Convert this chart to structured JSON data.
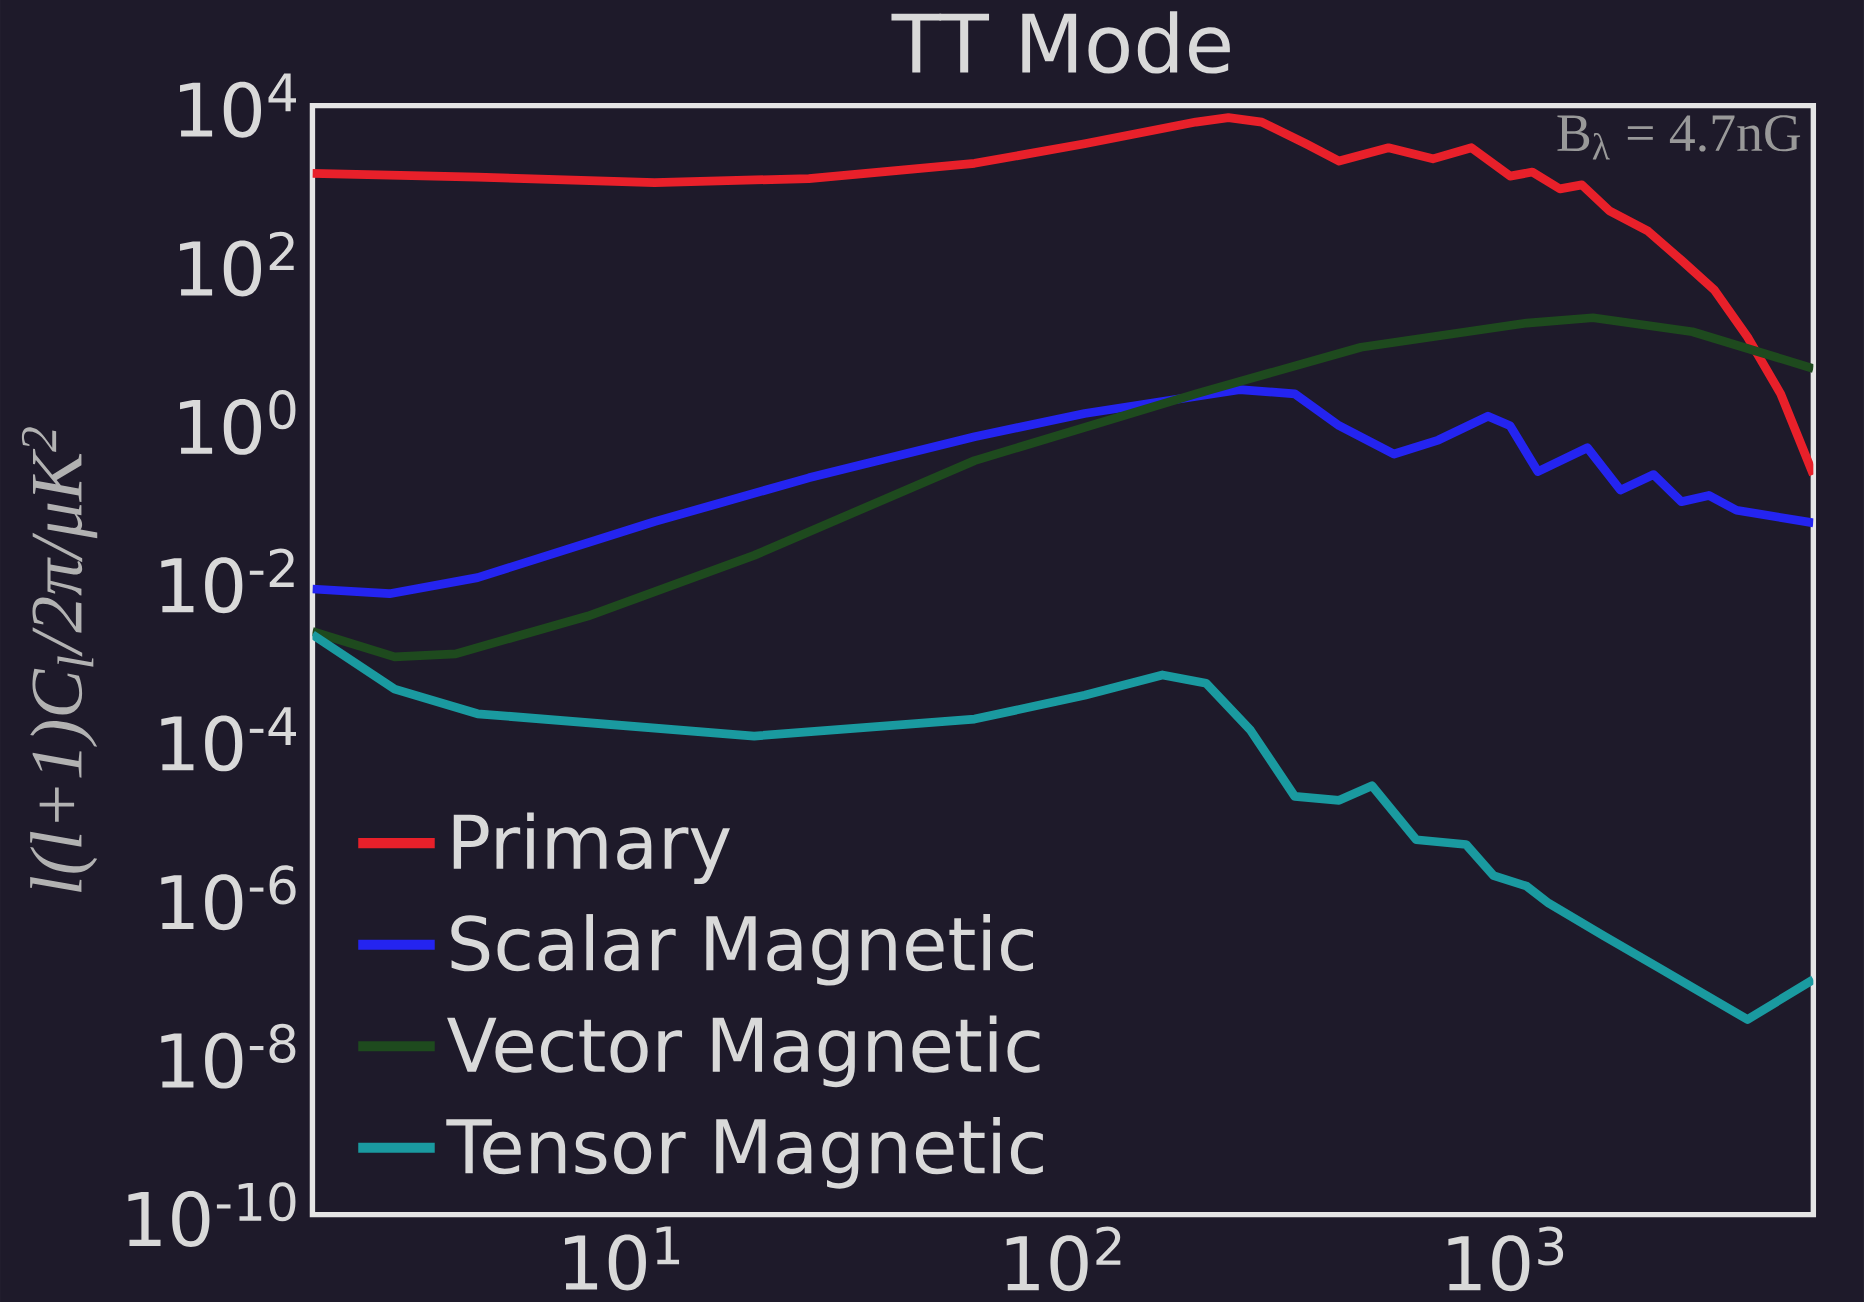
{
  "chart_data": {
    "type": "line",
    "title": "TT Mode",
    "ylabel": "l(l+1)C$_{l}$/2π/μK$^{2}$",
    "annotations": [
      "B$_{λ}$ = 4.7nG"
    ],
    "log": "xy",
    "legend": "bottom left",
    "xlim": [
      2,
      5000
    ],
    "ylim": [
      1e-10,
      10000
    ],
    "xticks": [
      {
        "value": 10,
        "label": "10$^{1}$"
      },
      {
        "value": 100,
        "label": "10$^{2}$"
      },
      {
        "value": 1000,
        "label": "10$^{3}$"
      }
    ],
    "yticks": [
      {
        "value": 1e-10,
        "label": "10$^{-10}$"
      },
      {
        "value": 1e-08,
        "label": "10$^{-8}$"
      },
      {
        "value": 1e-06,
        "label": "10$^{-6}$"
      },
      {
        "value": 0.0001,
        "label": "10$^{-4}$"
      },
      {
        "value": 0.01,
        "label": "10$^{-2}$"
      },
      {
        "value": 1,
        "label": "10$^{0}$"
      },
      {
        "value": 100,
        "label": "10$^{2}$"
      },
      {
        "value": 10000,
        "label": "10$^{4}$"
      }
    ],
    "series": [
      {
        "name": "Primary",
        "color": "#e8202a",
        "x": [
          2,
          4.73,
          11.9,
          26.6,
          63.1,
          112,
          200,
          237,
          282,
          355,
          422,
          546,
          688,
          841,
          1029,
          1155,
          1334,
          1496,
          1728,
          2113,
          2512,
          2985,
          3548,
          4217,
          5000
        ],
        "values": [
          1400,
          1250,
          1070,
          1200,
          1870,
          3300,
          6200,
          7070,
          6200,
          3300,
          2000,
          2940,
          2130,
          2940,
          1290,
          1450,
          890,
          1000,
          470,
          260,
          112,
          47,
          12,
          2.3,
          0.22
        ]
      },
      {
        "name": "Scalar Magnetic",
        "color": "#2424f0",
        "x": [
          2,
          2.99,
          4.73,
          11.9,
          26.6,
          63.1,
          112,
          251,
          335,
          422,
          562,
          708,
          917,
          1029,
          1189,
          1540,
          1830,
          2175,
          2512,
          2900,
          3350,
          5000
        ],
        "values": [
          0.0079,
          0.0069,
          0.011,
          0.056,
          0.2,
          0.66,
          1.3,
          2.6,
          2.3,
          0.91,
          0.4,
          0.6,
          1.2,
          0.91,
          0.24,
          0.48,
          0.14,
          0.22,
          0.1,
          0.12,
          0.078,
          0.054
        ]
      },
      {
        "name": "Vector Magnetic",
        "color": "#1e4a1e",
        "x": [
          2,
          3.07,
          4.22,
          8.41,
          20,
          63.1,
          200,
          473,
          1122,
          1585,
          2661,
          5000
        ],
        "values": [
          0.0023,
          0.0011,
          0.0012,
          0.0036,
          0.021,
          0.33,
          2.3,
          8.9,
          18,
          21,
          14,
          4.8
        ]
      },
      {
        "name": "Tensor Magnetic",
        "color": "#1a9aa0",
        "x": [
          2,
          3.07,
          4.73,
          20,
          63.1,
          112,
          168,
          211,
          266,
          335,
          422,
          501,
          631,
          818,
          944,
          1122,
          1259,
          1679,
          2239,
          3548,
          5000
        ],
        "values": [
          0.0021,
          0.00043,
          0.00021,
          0.00011,
          0.00018,
          0.00036,
          0.00065,
          0.00051,
          0.00013,
          1.9e-05,
          1.7e-05,
          2.6e-05,
          5.4e-06,
          4.7e-06,
          1.9e-06,
          1.4e-06,
          8.5e-07,
          3.3e-07,
          1.3e-07,
          2.9e-08,
          9.3e-08
        ]
      }
    ]
  }
}
